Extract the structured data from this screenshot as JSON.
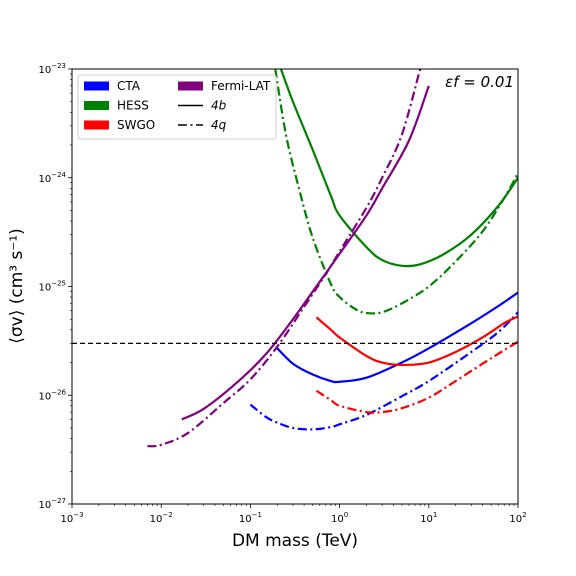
{
  "chart_data": {
    "type": "line",
    "xscale": "log",
    "yscale": "log",
    "xlim": [
      0.001,
      100
    ],
    "ylim": [
      1e-27,
      1e-23
    ],
    "xlabel": "DM mass (TeV)",
    "ylabel": "⟨σv⟩ (cm³ s⁻¹)",
    "annotation": "εf = 0.01",
    "grid": false,
    "legend_position": "top-left",
    "x_ticks": [
      {
        "value": 0.001,
        "base": "10",
        "exp": "−3"
      },
      {
        "value": 0.01,
        "base": "10",
        "exp": "−2"
      },
      {
        "value": 0.1,
        "base": "10",
        "exp": "−1"
      },
      {
        "value": 1,
        "base": "10",
        "exp": "0"
      },
      {
        "value": 10,
        "base": "10",
        "exp": "1"
      },
      {
        "value": 100,
        "base": "10",
        "exp": "2"
      }
    ],
    "y_ticks": [
      {
        "value": 1e-27,
        "base": "10",
        "exp": "−27"
      },
      {
        "value": 1e-26,
        "base": "10",
        "exp": "−26"
      },
      {
        "value": 1e-25,
        "base": "10",
        "exp": "−25"
      },
      {
        "value": 1e-24,
        "base": "10",
        "exp": "−24"
      },
      {
        "value": 1e-23,
        "base": "10",
        "exp": "−23"
      }
    ],
    "legend": [
      {
        "label": "CTA",
        "kind": "patch",
        "color": "#0000ff"
      },
      {
        "label": "HESS",
        "kind": "patch",
        "color": "#008000"
      },
      {
        "label": "SWGO",
        "kind": "patch",
        "color": "#ff0000"
      },
      {
        "label": "Fermi-LAT",
        "kind": "patch",
        "color": "#800080"
      },
      {
        "label": "4b",
        "kind": "line",
        "color": "#000000",
        "dash": "solid"
      },
      {
        "label": "4q",
        "kind": "line",
        "color": "#000000",
        "dash": "dashdot"
      }
    ],
    "reference_line": {
      "y": 3e-26,
      "style": "dashed",
      "color": "#000000"
    },
    "series": [
      {
        "experiment": "CTA",
        "channel": "4b",
        "color": "#0000ff",
        "dash": "solid",
        "points": [
          [
            0.2,
            2.7e-26
          ],
          [
            0.3,
            1.95e-26
          ],
          [
            0.5,
            1.55e-26
          ],
          [
            0.8,
            1.35e-26
          ],
          [
            1,
            1.33e-26
          ],
          [
            2,
            1.45e-26
          ],
          [
            5,
            2e-26
          ],
          [
            10,
            2.7e-26
          ],
          [
            30,
            4.6e-26
          ],
          [
            60,
            6.6e-26
          ],
          [
            100,
            8.8e-26
          ]
        ]
      },
      {
        "experiment": "CTA",
        "channel": "4q",
        "color": "#0000ff",
        "dash": "dashdot",
        "points": [
          [
            0.1,
            8.2e-27
          ],
          [
            0.15,
            6.3e-27
          ],
          [
            0.2,
            5.6e-27
          ],
          [
            0.3,
            5e-27
          ],
          [
            0.5,
            4.85e-27
          ],
          [
            0.8,
            5.1e-27
          ],
          [
            1,
            5.4e-27
          ],
          [
            2,
            6.6e-27
          ],
          [
            5,
            9.8e-27
          ],
          [
            10,
            1.35e-26
          ],
          [
            30,
            2.5e-26
          ],
          [
            60,
            3.8e-26
          ],
          [
            100,
            5.8e-26
          ]
        ]
      },
      {
        "experiment": "HESS",
        "channel": "4b",
        "color": "#008000",
        "dash": "solid",
        "points": [
          [
            0.22,
            1e-23
          ],
          [
            0.3,
            5e-24
          ],
          [
            0.5,
            1.8e-24
          ],
          [
            0.8,
            6.8e-25
          ],
          [
            1,
            4.5e-25
          ],
          [
            2,
            2.3e-25
          ],
          [
            3,
            1.75e-25
          ],
          [
            5,
            1.55e-25
          ],
          [
            8,
            1.6e-25
          ],
          [
            15,
            2e-25
          ],
          [
            30,
            3e-25
          ],
          [
            60,
            5.5e-25
          ],
          [
            100,
            1e-24
          ]
        ]
      },
      {
        "experiment": "HESS",
        "channel": "4q",
        "color": "#008000",
        "dash": "dashdot",
        "points": [
          [
            0.19,
            1e-23
          ],
          [
            0.25,
            2.5e-24
          ],
          [
            0.35,
            8e-25
          ],
          [
            0.5,
            2.8e-25
          ],
          [
            0.8,
            1.05e-25
          ],
          [
            1,
            8e-26
          ],
          [
            1.5,
            6.2e-26
          ],
          [
            2,
            5.7e-26
          ],
          [
            3,
            5.8e-26
          ],
          [
            5,
            7e-26
          ],
          [
            10,
            1e-25
          ],
          [
            20,
            1.7e-25
          ],
          [
            40,
            3.2e-25
          ],
          [
            70,
            6.5e-25
          ],
          [
            100,
            1.1e-24
          ]
        ]
      },
      {
        "experiment": "SWGO",
        "channel": "4b",
        "color": "#ff0000",
        "dash": "solid",
        "points": [
          [
            0.55,
            5.2e-26
          ],
          [
            0.8,
            4e-26
          ],
          [
            1,
            3.4e-26
          ],
          [
            2,
            2.3e-26
          ],
          [
            3,
            2e-26
          ],
          [
            5,
            1.9e-26
          ],
          [
            10,
            2e-26
          ],
          [
            20,
            2.5e-26
          ],
          [
            40,
            3.4e-26
          ],
          [
            70,
            4.6e-26
          ],
          [
            100,
            5.3e-26
          ]
        ]
      },
      {
        "experiment": "SWGO",
        "channel": "4q",
        "color": "#ff0000",
        "dash": "dashdot",
        "points": [
          [
            0.55,
            1.1e-26
          ],
          [
            0.8,
            9e-27
          ],
          [
            1,
            8e-27
          ],
          [
            2,
            7e-27
          ],
          [
            3,
            7e-27
          ],
          [
            5,
            7.6e-27
          ],
          [
            10,
            9.5e-27
          ],
          [
            20,
            1.35e-26
          ],
          [
            40,
            1.95e-26
          ],
          [
            70,
            2.6e-26
          ],
          [
            100,
            3.1e-26
          ]
        ]
      },
      {
        "experiment": "Fermi-LAT",
        "channel": "4b",
        "color": "#800080",
        "dash": "solid",
        "points": [
          [
            0.017,
            6e-27
          ],
          [
            0.03,
            7.5e-27
          ],
          [
            0.07,
            1.3e-26
          ],
          [
            0.15,
            2.4e-26
          ],
          [
            0.3,
            5e-26
          ],
          [
            0.5,
            9e-26
          ],
          [
            1,
            2e-25
          ],
          [
            2,
            4.5e-25
          ],
          [
            3,
            8e-25
          ],
          [
            6,
            2.2e-24
          ],
          [
            10,
            7e-24
          ]
        ]
      },
      {
        "experiment": "Fermi-LAT",
        "channel": "4q",
        "color": "#800080",
        "dash": "dashdot",
        "points": [
          [
            0.007,
            3.4e-27
          ],
          [
            0.01,
            3.5e-27
          ],
          [
            0.02,
            4.5e-27
          ],
          [
            0.05,
            8.5e-27
          ],
          [
            0.1,
            1.4e-26
          ],
          [
            0.2,
            2.8e-26
          ],
          [
            0.4,
            6.5e-26
          ],
          [
            0.7,
            1.3e-25
          ],
          [
            1,
            2.1e-25
          ],
          [
            2,
            5.3e-25
          ],
          [
            3,
            1e-24
          ],
          [
            5,
            2.5e-24
          ],
          [
            8,
            1e-23
          ]
        ]
      }
    ]
  }
}
